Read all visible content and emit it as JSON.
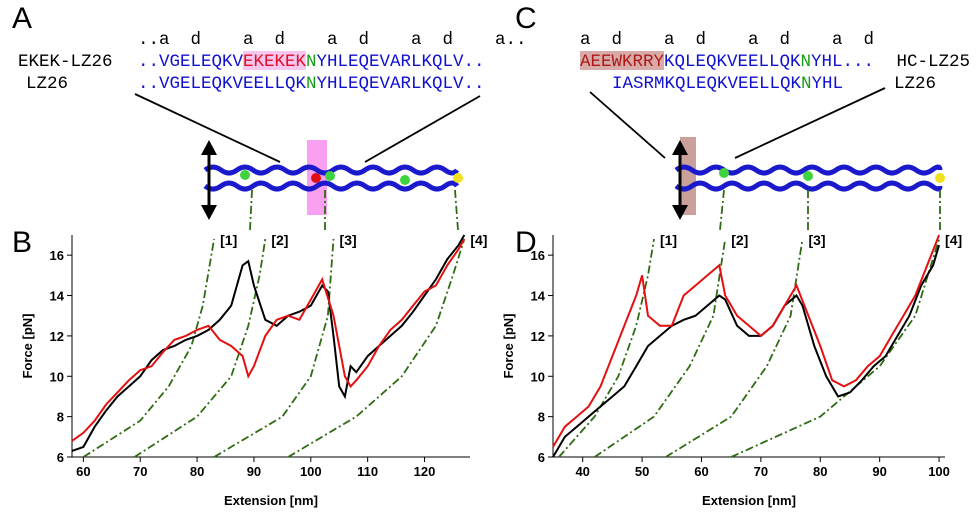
{
  "panels": {
    "A": {
      "letter": "A",
      "heptad": "..a  d    a  d    a  d    a  d    a..",
      "rows": [
        {
          "name": "EKEK-LZ26",
          "segments": [
            {
              "text": "..VGELEQKV",
              "color": "#1010d0"
            },
            {
              "text": "EKEKEK",
              "color": "#e0102a",
              "highlight": "#f7c6ee"
            },
            {
              "text": "N",
              "color": "#1a9a1a"
            },
            {
              "text": "YHLEQEVARLKQLV..",
              "color": "#1010d0"
            }
          ]
        },
        {
          "name": "LZ26",
          "segments": [
            {
              "text": "..VGELEQKVEELLQK",
              "color": "#1010d0"
            },
            {
              "text": "N",
              "color": "#1a9a1a"
            },
            {
              "text": "YHLEQEVARLKQLV..",
              "color": "#1010d0"
            }
          ]
        }
      ]
    },
    "C": {
      "letter": "C",
      "heptad": "a  d    a  d    a  d    a  d",
      "rows": [
        {
          "name": "HC-LZ25",
          "segments": [
            {
              "text": "AEEWKRRY",
              "color": "#b01818",
              "highlight": "#d7aca8"
            },
            {
              "text": "KQLEQKVEELLQK",
              "color": "#1010d0"
            },
            {
              "text": "N",
              "color": "#1a9a1a"
            },
            {
              "text": "YHL...",
              "color": "#1010d0"
            }
          ]
        },
        {
          "name": "LZ26",
          "segments": [
            {
              "text": "IASRMKQLEQKVEELLQK",
              "color": "#1010d0"
            },
            {
              "text": "N",
              "color": "#1a9a1a"
            },
            {
              "text": "YHL",
              "color": "#1010d0"
            }
          ]
        }
      ]
    }
  },
  "chart_data": [
    {
      "type": "line",
      "letter": "B",
      "xlabel": "Extension [nm]",
      "ylabel": "Force [pN]",
      "xlim": [
        58,
        128
      ],
      "ylim": [
        6,
        17
      ],
      "xticks": [
        60,
        70,
        80,
        90,
        100,
        110,
        120
      ],
      "yticks": [
        6,
        8,
        10,
        12,
        14,
        16
      ],
      "series": [
        {
          "color": "#2e6b12",
          "style": "dashdot",
          "label": "[1]",
          "x": [
            60,
            70,
            75,
            79,
            81,
            83
          ],
          "values": [
            6,
            7.8,
            9.5,
            11.5,
            13.5,
            16.8
          ]
        },
        {
          "color": "#2e6b12",
          "style": "dashdot",
          "label": "[2]",
          "x": [
            69,
            80,
            86,
            89,
            91,
            92
          ],
          "values": [
            6,
            8,
            10,
            12.5,
            15,
            16.8
          ]
        },
        {
          "color": "#2e6b12",
          "style": "dashdot",
          "label": "[3]",
          "x": [
            83,
            95,
            100,
            103,
            104
          ],
          "values": [
            6,
            8,
            10,
            13,
            16.8
          ]
        },
        {
          "color": "#2e6b12",
          "style": "dashdot",
          "label": "[4]",
          "x": [
            96,
            108,
            116,
            122,
            125,
            127
          ],
          "values": [
            6,
            8,
            10,
            12.5,
            15,
            16.8
          ]
        },
        {
          "color": "#000000",
          "x": [
            58,
            60,
            62,
            64,
            66,
            68,
            70,
            72,
            74,
            76,
            78,
            80,
            82,
            84,
            86,
            88,
            89,
            90,
            92,
            94,
            96,
            98,
            100,
            102,
            103,
            104,
            105,
            106,
            107,
            108,
            110,
            112,
            114,
            116,
            118,
            120,
            122,
            124,
            126,
            127
          ],
          "values": [
            6.3,
            6.5,
            7.5,
            8.3,
            9,
            9.5,
            10,
            10.8,
            11.3,
            11.5,
            11.8,
            12,
            12.3,
            12.8,
            13.5,
            15.5,
            15.7,
            14.5,
            12.8,
            12.5,
            13,
            13.2,
            13.5,
            14.5,
            14.2,
            12,
            9.5,
            9,
            10.5,
            10.2,
            11,
            11.5,
            12,
            12.5,
            13.2,
            14,
            14.8,
            15.8,
            16.5,
            17
          ]
        },
        {
          "color": "#e41010",
          "x": [
            58,
            60,
            62,
            64,
            66,
            68,
            70,
            72,
            74,
            76,
            78,
            80,
            82,
            84,
            86,
            88,
            89,
            90,
            92,
            94,
            96,
            98,
            100,
            102,
            104,
            106,
            107,
            108,
            110,
            112,
            114,
            116,
            118,
            120,
            122,
            124,
            126,
            127
          ],
          "values": [
            6.8,
            7.2,
            7.8,
            8.6,
            9.2,
            9.8,
            10.3,
            10.5,
            11.2,
            11.8,
            12,
            12.3,
            12.5,
            11.8,
            11.5,
            11,
            10,
            10.5,
            12,
            12.8,
            13,
            12.8,
            13.8,
            14.8,
            13,
            10,
            9.5,
            9.8,
            10.5,
            11.5,
            12.3,
            12.8,
            13.5,
            14.2,
            14.5,
            15.5,
            16.3,
            16.8
          ]
        }
      ]
    },
    {
      "type": "line",
      "letter": "D",
      "xlabel": "Extension [nm]",
      "ylabel": "Force [pN]",
      "xlim": [
        35,
        101
      ],
      "ylim": [
        6,
        17
      ],
      "xticks": [
        40,
        50,
        60,
        70,
        80,
        90,
        100
      ],
      "yticks": [
        6,
        8,
        10,
        12,
        14,
        16
      ],
      "series": [
        {
          "color": "#2e6b12",
          "style": "dashdot",
          "label": "[1]",
          "x": [
            36,
            42,
            46,
            49,
            51,
            52
          ],
          "values": [
            6,
            8,
            10,
            12.5,
            15,
            16.8
          ]
        },
        {
          "color": "#2e6b12",
          "style": "dashdot",
          "label": "[2]",
          "x": [
            42,
            52,
            58,
            62,
            64
          ],
          "values": [
            6,
            8,
            10.5,
            13,
            16.8
          ]
        },
        {
          "color": "#2e6b12",
          "style": "dashdot",
          "label": "[3]",
          "x": [
            54,
            65,
            71,
            75,
            77
          ],
          "values": [
            6,
            8,
            10.5,
            13,
            16.8
          ]
        },
        {
          "color": "#2e6b12",
          "style": "dashdot",
          "label": "[4]",
          "x": [
            65,
            80,
            90,
            96,
            100
          ],
          "values": [
            6,
            8,
            10.5,
            13,
            16.8
          ]
        },
        {
          "color": "#000000",
          "x": [
            35,
            37,
            39,
            41,
            43,
            45,
            47,
            49,
            51,
            53,
            55,
            57,
            59,
            61,
            63,
            64,
            66,
            68,
            70,
            72,
            74,
            76,
            77,
            79,
            81,
            83,
            85,
            87,
            89,
            91,
            93,
            95,
            97,
            99,
            100
          ],
          "values": [
            6,
            7,
            7.5,
            8,
            8.5,
            9,
            9.5,
            10.5,
            11.5,
            12,
            12.5,
            12.8,
            13,
            13.5,
            14,
            13.8,
            12.5,
            12,
            12,
            12.5,
            13.5,
            14,
            13.5,
            11.5,
            10,
            9,
            9.2,
            9.8,
            10.5,
            11,
            12,
            13,
            14.5,
            15.5,
            16.5
          ]
        },
        {
          "color": "#e41010",
          "x": [
            35,
            37,
            39,
            41,
            43,
            45,
            47,
            49,
            50,
            51,
            53,
            55,
            57,
            59,
            61,
            63,
            64,
            66,
            68,
            70,
            72,
            74,
            76,
            78,
            80,
            82,
            84,
            86,
            88,
            90,
            92,
            94,
            96,
            98,
            100
          ],
          "values": [
            6.5,
            7.5,
            8,
            8.5,
            9.5,
            11,
            12.5,
            14,
            15,
            13,
            12.5,
            12.5,
            14,
            14.5,
            15,
            15.5,
            14,
            13,
            12.5,
            12,
            12.5,
            13.5,
            14.5,
            13,
            11.5,
            9.8,
            9.5,
            9.8,
            10.5,
            11,
            12,
            13,
            14,
            15.5,
            17
          ]
        }
      ]
    }
  ]
}
